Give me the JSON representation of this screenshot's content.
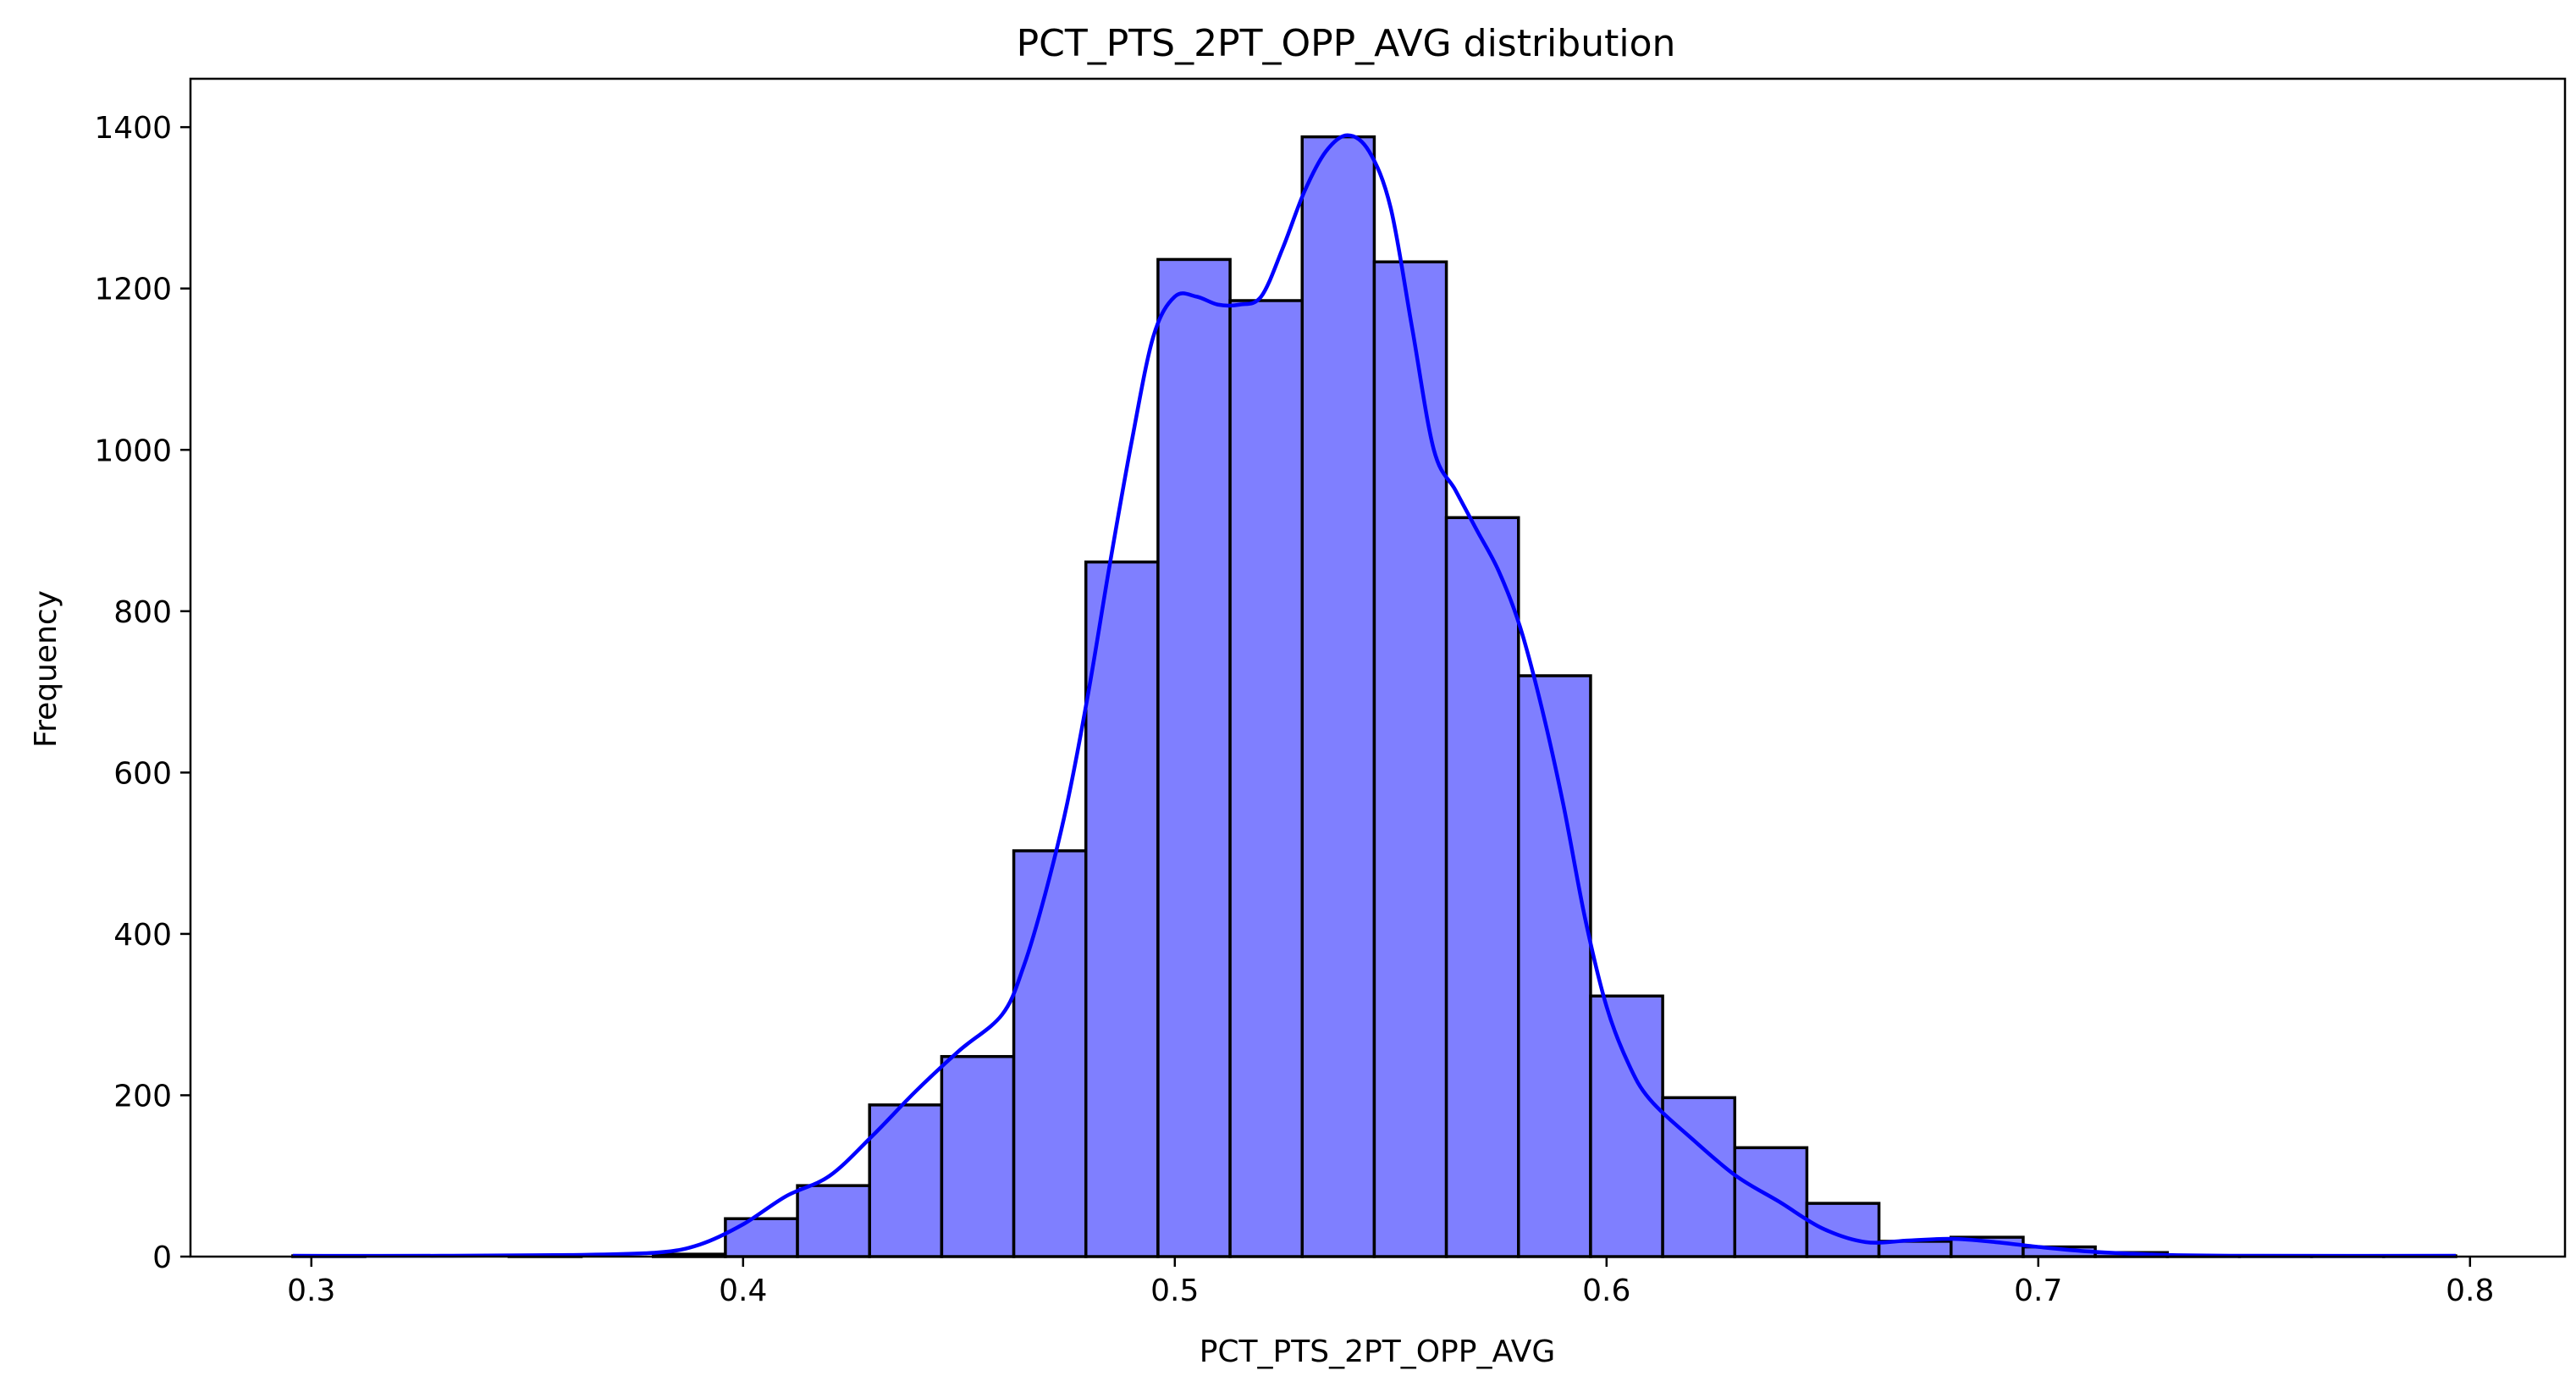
{
  "chart_data": {
    "type": "bar",
    "title": "PCT_PTS_2PT_OPP_AVG distribution",
    "xlabel": "PCT_PTS_2PT_OPP_AVG",
    "ylabel": "Frequency",
    "xlim": [
      0.272,
      0.822
    ],
    "ylim": [
      0,
      1460
    ],
    "xticks": [
      0.3,
      0.4,
      0.5,
      0.6,
      0.7,
      0.8
    ],
    "yticks": [
      0,
      200,
      400,
      600,
      800,
      1000,
      1200,
      1400
    ],
    "xtick_labels": [
      "0.3",
      "0.4",
      "0.5",
      "0.6",
      "0.7",
      "0.8"
    ],
    "ytick_labels": [
      "0",
      "200",
      "400",
      "600",
      "800",
      "1000",
      "1200",
      "1400"
    ],
    "grid": false,
    "bar_color": "#7f7fff",
    "kde_color": "#0000ff",
    "bins": [
      {
        "x0": 0.2957,
        "x1": 0.3124,
        "count": 1
      },
      {
        "x0": 0.3124,
        "x1": 0.3291,
        "count": 0
      },
      {
        "x0": 0.3291,
        "x1": 0.3458,
        "count": 0
      },
      {
        "x0": 0.3458,
        "x1": 0.3625,
        "count": 1
      },
      {
        "x0": 0.3625,
        "x1": 0.3792,
        "count": 0
      },
      {
        "x0": 0.3792,
        "x1": 0.3959,
        "count": 3
      },
      {
        "x0": 0.3959,
        "x1": 0.4126,
        "count": 47
      },
      {
        "x0": 0.4126,
        "x1": 0.4293,
        "count": 88
      },
      {
        "x0": 0.4293,
        "x1": 0.446,
        "count": 188
      },
      {
        "x0": 0.446,
        "x1": 0.4627,
        "count": 248
      },
      {
        "x0": 0.4627,
        "x1": 0.4794,
        "count": 503
      },
      {
        "x0": 0.4794,
        "x1": 0.4961,
        "count": 861
      },
      {
        "x0": 0.4961,
        "x1": 0.5128,
        "count": 1236
      },
      {
        "x0": 0.5128,
        "x1": 0.5295,
        "count": 1185
      },
      {
        "x0": 0.5295,
        "x1": 0.5462,
        "count": 1388
      },
      {
        "x0": 0.5462,
        "x1": 0.5629,
        "count": 1233
      },
      {
        "x0": 0.5629,
        "x1": 0.5796,
        "count": 916
      },
      {
        "x0": 0.5796,
        "x1": 0.5963,
        "count": 720
      },
      {
        "x0": 0.5963,
        "x1": 0.613,
        "count": 323
      },
      {
        "x0": 0.613,
        "x1": 0.6297,
        "count": 197
      },
      {
        "x0": 0.6297,
        "x1": 0.6464,
        "count": 135
      },
      {
        "x0": 0.6464,
        "x1": 0.6631,
        "count": 66
      },
      {
        "x0": 0.6631,
        "x1": 0.6798,
        "count": 19
      },
      {
        "x0": 0.6798,
        "x1": 0.6965,
        "count": 24
      },
      {
        "x0": 0.6965,
        "x1": 0.7132,
        "count": 12
      },
      {
        "x0": 0.7132,
        "x1": 0.7299,
        "count": 5
      },
      {
        "x0": 0.7299,
        "x1": 0.7466,
        "count": 1
      },
      {
        "x0": 0.7466,
        "x1": 0.7633,
        "count": 1
      },
      {
        "x0": 0.7633,
        "x1": 0.78,
        "count": 1
      },
      {
        "x0": 0.78,
        "x1": 0.7967,
        "count": 1
      }
    ],
    "kde": {
      "x": [
        0.2957,
        0.33,
        0.36,
        0.38,
        0.39,
        0.4,
        0.41,
        0.42,
        0.43,
        0.44,
        0.45,
        0.46,
        0.465,
        0.47,
        0.475,
        0.48,
        0.485,
        0.49,
        0.495,
        0.5,
        0.505,
        0.51,
        0.515,
        0.52,
        0.525,
        0.53,
        0.535,
        0.54,
        0.545,
        0.55,
        0.555,
        0.56,
        0.565,
        0.57,
        0.575,
        0.58,
        0.585,
        0.59,
        0.595,
        0.6,
        0.605,
        0.61,
        0.62,
        0.63,
        0.64,
        0.65,
        0.66,
        0.67,
        0.68,
        0.69,
        0.7,
        0.71,
        0.72,
        0.73,
        0.75,
        0.7967
      ],
      "y": [
        1,
        1,
        2,
        5,
        15,
        40,
        75,
        100,
        150,
        205,
        255,
        300,
        360,
        450,
        560,
        700,
        860,
        1010,
        1140,
        1190,
        1190,
        1180,
        1180,
        1190,
        1250,
        1320,
        1370,
        1390,
        1370,
        1300,
        1150,
        1000,
        950,
        900,
        850,
        780,
        680,
        560,
        420,
        310,
        240,
        195,
        145,
        100,
        68,
        35,
        18,
        20,
        22,
        18,
        12,
        7,
        4,
        2,
        1,
        1
      ]
    }
  }
}
